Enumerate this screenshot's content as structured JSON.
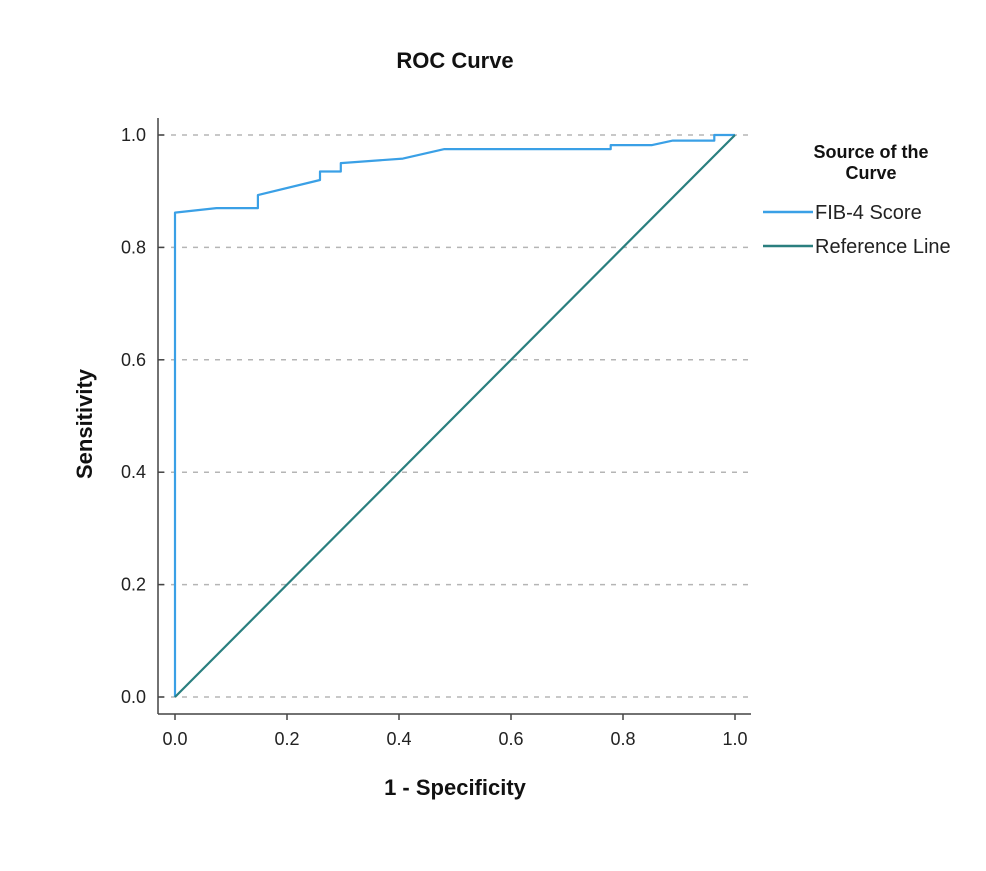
{
  "chart_data": {
    "type": "line",
    "title": "ROC Curve",
    "xlabel": "1 - Specificity",
    "ylabel": "Sensitivity",
    "xlim": [
      0,
      1
    ],
    "ylim": [
      0,
      1
    ],
    "xticks": [
      "0.0",
      "0.2",
      "0.4",
      "0.6",
      "0.8",
      "1.0"
    ],
    "yticks": [
      "0.0",
      "0.2",
      "0.4",
      "0.6",
      "0.8",
      "1.0"
    ],
    "grid": "horizontal dashed",
    "legend": {
      "title": "Source of the Curve",
      "title_lines": [
        "Source of the",
        "Curve"
      ],
      "placement": "right"
    },
    "series": [
      {
        "name": "FIB-4 Score",
        "color": "#3aa0e6",
        "x": [
          0.0,
          0.0,
          0.074,
          0.148,
          0.148,
          0.259,
          0.259,
          0.296,
          0.296,
          0.407,
          0.481,
          0.778,
          0.778,
          0.852,
          0.889,
          0.963,
          0.963,
          1.0
        ],
        "y": [
          0.0,
          0.862,
          0.87,
          0.87,
          0.893,
          0.92,
          0.935,
          0.935,
          0.95,
          0.958,
          0.975,
          0.975,
          0.982,
          0.982,
          0.99,
          0.99,
          1.0,
          1.0
        ]
      },
      {
        "name": "Reference Line",
        "color": "#2a7f7f",
        "x": [
          0.0,
          1.0
        ],
        "y": [
          0.0,
          1.0
        ]
      }
    ]
  }
}
